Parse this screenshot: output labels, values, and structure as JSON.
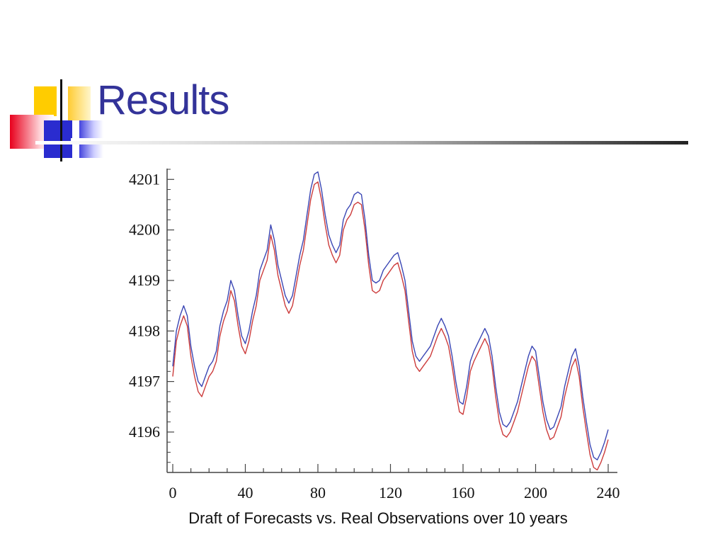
{
  "slide": {
    "title": "Results",
    "caption": "Draft of Forecasts vs. Real Observations over 10 years"
  },
  "colors": {
    "title": "#333399",
    "forecast_line": "#3a46b4",
    "observed_line": "#cc3b3b"
  },
  "chart_data": {
    "type": "line",
    "title": "",
    "xlabel": "",
    "ylabel": "",
    "xlim": [
      0,
      240
    ],
    "ylim": [
      4195.2,
      4201.2
    ],
    "x_ticks": [
      0,
      40,
      80,
      120,
      160,
      200,
      240
    ],
    "x_minor_step": 10,
    "y_ticks": [
      4196,
      4197,
      4198,
      4199,
      4200,
      4201
    ],
    "grid": false,
    "legend": "none",
    "series": [
      {
        "color": "#3a46b4",
        "points": [
          [
            0,
            4197.3
          ],
          [
            2,
            4198.0
          ],
          [
            4,
            4198.3
          ],
          [
            6,
            4198.5
          ],
          [
            8,
            4198.3
          ],
          [
            10,
            4197.7
          ],
          [
            12,
            4197.3
          ],
          [
            14,
            4197.0
          ],
          [
            16,
            4196.9
          ],
          [
            18,
            4197.1
          ],
          [
            20,
            4197.3
          ],
          [
            22,
            4197.4
          ],
          [
            24,
            4197.6
          ],
          [
            26,
            4198.1
          ],
          [
            28,
            4198.4
          ],
          [
            30,
            4198.6
          ],
          [
            32,
            4199.0
          ],
          [
            34,
            4198.8
          ],
          [
            36,
            4198.3
          ],
          [
            38,
            4197.9
          ],
          [
            40,
            4197.75
          ],
          [
            42,
            4198.0
          ],
          [
            44,
            4198.4
          ],
          [
            46,
            4198.7
          ],
          [
            48,
            4199.2
          ],
          [
            50,
            4199.4
          ],
          [
            52,
            4199.6
          ],
          [
            54,
            4200.1
          ],
          [
            56,
            4199.8
          ],
          [
            58,
            4199.3
          ],
          [
            60,
            4199.0
          ],
          [
            62,
            4198.7
          ],
          [
            64,
            4198.55
          ],
          [
            66,
            4198.7
          ],
          [
            68,
            4199.1
          ],
          [
            70,
            4199.5
          ],
          [
            72,
            4199.8
          ],
          [
            74,
            4200.3
          ],
          [
            76,
            4200.8
          ],
          [
            78,
            4201.1
          ],
          [
            80,
            4201.15
          ],
          [
            82,
            4200.8
          ],
          [
            84,
            4200.3
          ],
          [
            86,
            4199.9
          ],
          [
            88,
            4199.7
          ],
          [
            90,
            4199.55
          ],
          [
            92,
            4199.7
          ],
          [
            94,
            4200.2
          ],
          [
            96,
            4200.4
          ],
          [
            98,
            4200.5
          ],
          [
            100,
            4200.7
          ],
          [
            102,
            4200.75
          ],
          [
            104,
            4200.7
          ],
          [
            106,
            4200.2
          ],
          [
            108,
            4199.5
          ],
          [
            110,
            4199.0
          ],
          [
            112,
            4198.95
          ],
          [
            114,
            4199.0
          ],
          [
            116,
            4199.2
          ],
          [
            118,
            4199.3
          ],
          [
            120,
            4199.4
          ],
          [
            122,
            4199.5
          ],
          [
            124,
            4199.55
          ],
          [
            126,
            4199.3
          ],
          [
            128,
            4199.0
          ],
          [
            130,
            4198.4
          ],
          [
            132,
            4197.8
          ],
          [
            134,
            4197.5
          ],
          [
            136,
            4197.4
          ],
          [
            138,
            4197.5
          ],
          [
            140,
            4197.6
          ],
          [
            142,
            4197.7
          ],
          [
            144,
            4197.9
          ],
          [
            146,
            4198.1
          ],
          [
            148,
            4198.25
          ],
          [
            150,
            4198.1
          ],
          [
            152,
            4197.9
          ],
          [
            154,
            4197.5
          ],
          [
            156,
            4197.0
          ],
          [
            158,
            4196.6
          ],
          [
            160,
            4196.55
          ],
          [
            162,
            4196.9
          ],
          [
            164,
            4197.4
          ],
          [
            166,
            4197.6
          ],
          [
            168,
            4197.75
          ],
          [
            170,
            4197.9
          ],
          [
            172,
            4198.05
          ],
          [
            174,
            4197.9
          ],
          [
            176,
            4197.5
          ],
          [
            178,
            4196.9
          ],
          [
            180,
            4196.4
          ],
          [
            182,
            4196.15
          ],
          [
            184,
            4196.1
          ],
          [
            186,
            4196.2
          ],
          [
            188,
            4196.4
          ],
          [
            190,
            4196.6
          ],
          [
            192,
            4196.9
          ],
          [
            194,
            4197.2
          ],
          [
            196,
            4197.5
          ],
          [
            198,
            4197.7
          ],
          [
            200,
            4197.6
          ],
          [
            202,
            4197.1
          ],
          [
            204,
            4196.6
          ],
          [
            206,
            4196.25
          ],
          [
            208,
            4196.05
          ],
          [
            210,
            4196.1
          ],
          [
            212,
            4196.3
          ],
          [
            214,
            4196.5
          ],
          [
            216,
            4196.9
          ],
          [
            218,
            4197.2
          ],
          [
            220,
            4197.5
          ],
          [
            222,
            4197.65
          ],
          [
            224,
            4197.3
          ],
          [
            226,
            4196.7
          ],
          [
            228,
            4196.2
          ],
          [
            230,
            4195.75
          ],
          [
            232,
            4195.5
          ],
          [
            234,
            4195.45
          ],
          [
            236,
            4195.6
          ],
          [
            238,
            4195.8
          ],
          [
            240,
            4196.05
          ]
        ]
      },
      {
        "color": "#cc3b3b",
        "points": [
          [
            0,
            4197.1
          ],
          [
            2,
            4197.8
          ],
          [
            4,
            4198.1
          ],
          [
            6,
            4198.3
          ],
          [
            8,
            4198.1
          ],
          [
            10,
            4197.5
          ],
          [
            12,
            4197.1
          ],
          [
            14,
            4196.8
          ],
          [
            16,
            4196.7
          ],
          [
            18,
            4196.9
          ],
          [
            20,
            4197.1
          ],
          [
            22,
            4197.2
          ],
          [
            24,
            4197.4
          ],
          [
            26,
            4197.9
          ],
          [
            28,
            4198.2
          ],
          [
            30,
            4198.4
          ],
          [
            32,
            4198.8
          ],
          [
            34,
            4198.6
          ],
          [
            36,
            4198.1
          ],
          [
            38,
            4197.7
          ],
          [
            40,
            4197.55
          ],
          [
            42,
            4197.8
          ],
          [
            44,
            4198.2
          ],
          [
            46,
            4198.5
          ],
          [
            48,
            4199.0
          ],
          [
            50,
            4199.2
          ],
          [
            52,
            4199.4
          ],
          [
            54,
            4199.9
          ],
          [
            56,
            4199.6
          ],
          [
            58,
            4199.1
          ],
          [
            60,
            4198.8
          ],
          [
            62,
            4198.5
          ],
          [
            64,
            4198.35
          ],
          [
            66,
            4198.5
          ],
          [
            68,
            4198.9
          ],
          [
            70,
            4199.3
          ],
          [
            72,
            4199.6
          ],
          [
            74,
            4200.1
          ],
          [
            76,
            4200.6
          ],
          [
            78,
            4200.9
          ],
          [
            80,
            4200.95
          ],
          [
            82,
            4200.6
          ],
          [
            84,
            4200.1
          ],
          [
            86,
            4199.7
          ],
          [
            88,
            4199.5
          ],
          [
            90,
            4199.35
          ],
          [
            92,
            4199.5
          ],
          [
            94,
            4200.0
          ],
          [
            96,
            4200.2
          ],
          [
            98,
            4200.3
          ],
          [
            100,
            4200.5
          ],
          [
            102,
            4200.55
          ],
          [
            104,
            4200.5
          ],
          [
            106,
            4200.0
          ],
          [
            108,
            4199.3
          ],
          [
            110,
            4198.8
          ],
          [
            112,
            4198.75
          ],
          [
            114,
            4198.8
          ],
          [
            116,
            4199.0
          ],
          [
            118,
            4199.1
          ],
          [
            120,
            4199.2
          ],
          [
            122,
            4199.3
          ],
          [
            124,
            4199.35
          ],
          [
            126,
            4199.1
          ],
          [
            128,
            4198.8
          ],
          [
            130,
            4198.2
          ],
          [
            132,
            4197.6
          ],
          [
            134,
            4197.3
          ],
          [
            136,
            4197.2
          ],
          [
            138,
            4197.3
          ],
          [
            140,
            4197.4
          ],
          [
            142,
            4197.5
          ],
          [
            144,
            4197.7
          ],
          [
            146,
            4197.9
          ],
          [
            148,
            4198.05
          ],
          [
            150,
            4197.9
          ],
          [
            152,
            4197.7
          ],
          [
            154,
            4197.3
          ],
          [
            156,
            4196.8
          ],
          [
            158,
            4196.4
          ],
          [
            160,
            4196.35
          ],
          [
            162,
            4196.7
          ],
          [
            164,
            4197.2
          ],
          [
            166,
            4197.4
          ],
          [
            168,
            4197.55
          ],
          [
            170,
            4197.7
          ],
          [
            172,
            4197.85
          ],
          [
            174,
            4197.7
          ],
          [
            176,
            4197.3
          ],
          [
            178,
            4196.7
          ],
          [
            180,
            4196.2
          ],
          [
            182,
            4195.95
          ],
          [
            184,
            4195.9
          ],
          [
            186,
            4196.0
          ],
          [
            188,
            4196.2
          ],
          [
            190,
            4196.4
          ],
          [
            192,
            4196.7
          ],
          [
            194,
            4197.0
          ],
          [
            196,
            4197.3
          ],
          [
            198,
            4197.5
          ],
          [
            200,
            4197.4
          ],
          [
            202,
            4196.9
          ],
          [
            204,
            4196.4
          ],
          [
            206,
            4196.05
          ],
          [
            208,
            4195.85
          ],
          [
            210,
            4195.9
          ],
          [
            212,
            4196.1
          ],
          [
            214,
            4196.3
          ],
          [
            216,
            4196.7
          ],
          [
            218,
            4197.0
          ],
          [
            220,
            4197.3
          ],
          [
            222,
            4197.45
          ],
          [
            224,
            4197.1
          ],
          [
            226,
            4196.5
          ],
          [
            228,
            4196.0
          ],
          [
            230,
            4195.55
          ],
          [
            232,
            4195.3
          ],
          [
            234,
            4195.25
          ],
          [
            236,
            4195.4
          ],
          [
            238,
            4195.6
          ],
          [
            240,
            4195.85
          ]
        ]
      }
    ]
  }
}
